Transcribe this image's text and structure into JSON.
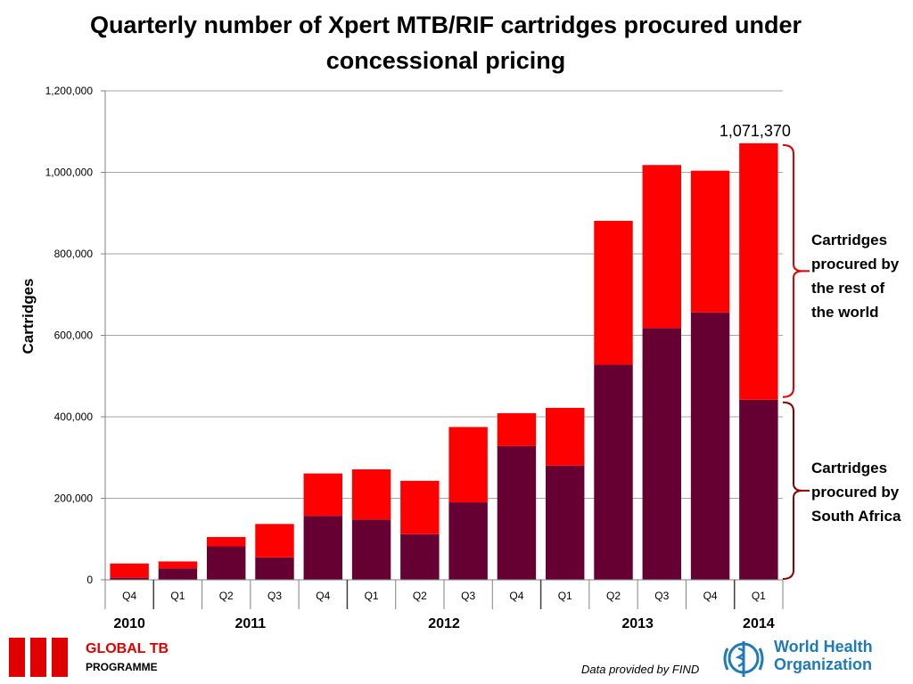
{
  "chart_data": {
    "type": "bar",
    "stacked": true,
    "title": "Quarterly number of Xpert MTB/RIF cartridges procured under concessional pricing",
    "xlabel": "",
    "ylabel": "Cartridges",
    "ylim": [
      0,
      1200000
    ],
    "yticks": [
      0,
      200000,
      400000,
      600000,
      800000,
      1000000,
      1200000
    ],
    "ytick_labels": [
      "0",
      "200,000",
      "400,000",
      "600,000",
      "800,000",
      "1,000,000",
      "1,200,000"
    ],
    "grid": true,
    "categories": [
      "Q4",
      "Q1",
      "Q2",
      "Q3",
      "Q4",
      "Q1",
      "Q2",
      "Q3",
      "Q4",
      "Q1",
      "Q2",
      "Q3",
      "Q4",
      "Q1"
    ],
    "years": [
      {
        "label": "2010",
        "quarters": 1
      },
      {
        "label": "2011",
        "quarters": 4
      },
      {
        "label": "2012",
        "quarters": 4
      },
      {
        "label": "2013",
        "quarters": 4
      },
      {
        "label": "2014",
        "quarters": 1
      }
    ],
    "series": [
      {
        "color": "#660033",
        "values": [
          5000,
          28000,
          82000,
          55000,
          157000,
          148000,
          112000,
          190000,
          328000,
          280000,
          528000,
          618000,
          656000,
          442000
        ]
      },
      {
        "color": "#ff0000",
        "values": [
          35000,
          17000,
          23000,
          82000,
          104000,
          123000,
          131000,
          185000,
          81000,
          142000,
          353000,
          400000,
          348000,
          629370
        ]
      }
    ],
    "annotation": "1,071,370",
    "brace_labels": {
      "rest": "Cartridges procured by the rest of the world",
      "south_africa": "Cartridges procured by South Africa"
    }
  },
  "footer": {
    "programme_title": "GLOBAL TB",
    "programme_sub": "PROGRAMME",
    "credit": "Data provided by FIND",
    "who_line1": "World Health",
    "who_line2": "Organization"
  }
}
